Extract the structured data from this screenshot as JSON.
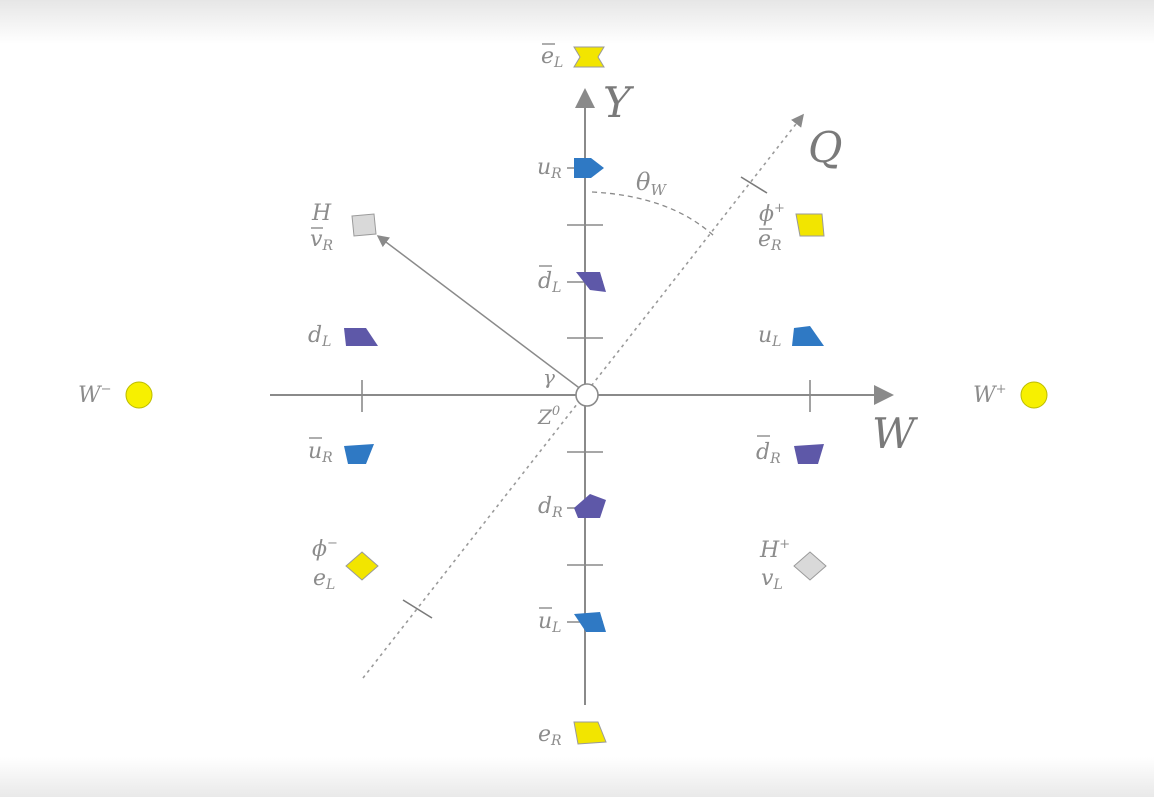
{
  "axes": {
    "y": {
      "base": "Y"
    },
    "w": {
      "base": "W"
    },
    "q": {
      "base": "Q"
    },
    "angle": {
      "base": "θ",
      "sub": "W"
    }
  },
  "origin": {
    "gamma": {
      "base": "γ"
    },
    "z0": {
      "base": "Z",
      "sup": "0"
    }
  },
  "particles": {
    "eL_bar": {
      "base": "e",
      "sub": "L",
      "bar": true
    },
    "uR": {
      "base": "u",
      "sub": "R"
    },
    "dL_bar": {
      "base": "d",
      "sub": "L",
      "bar": true
    },
    "dR": {
      "base": "d",
      "sub": "R"
    },
    "uL_bar": {
      "base": "u",
      "sub": "L",
      "bar": true
    },
    "eR": {
      "base": "e",
      "sub": "R"
    },
    "dL": {
      "base": "d",
      "sub": "L"
    },
    "uR_bar": {
      "base": "u",
      "sub": "R",
      "bar": true
    },
    "uL": {
      "base": "u",
      "sub": "L"
    },
    "dR_bar": {
      "base": "d",
      "sub": "R",
      "bar": true
    },
    "H": {
      "base": "H"
    },
    "nuR_bar": {
      "base": "v",
      "sub": "R",
      "bar": true
    },
    "phi_plus": {
      "base": "ϕ",
      "sup": "+"
    },
    "eR_bar": {
      "base": "e",
      "sub": "R",
      "bar": true
    },
    "phi_minus": {
      "base": "ϕ",
      "sup": "−"
    },
    "eL": {
      "base": "e",
      "sub": "L"
    },
    "H_plus": {
      "base": "H",
      "sup": "+"
    },
    "nuL": {
      "base": "v",
      "sub": "L"
    },
    "W_minus": {
      "base": "W",
      "sup": "−"
    },
    "W_plus": {
      "base": "W",
      "sup": "+"
    }
  },
  "colors": {
    "up_quark": "#2f79c4",
    "down_quark": "#5e58a8",
    "lepton": "#f2e500",
    "higgs": "#d9d9d9",
    "w_boson": "#f7f000",
    "axis": "#8a8a8a",
    "label": "#8c8c8c"
  }
}
